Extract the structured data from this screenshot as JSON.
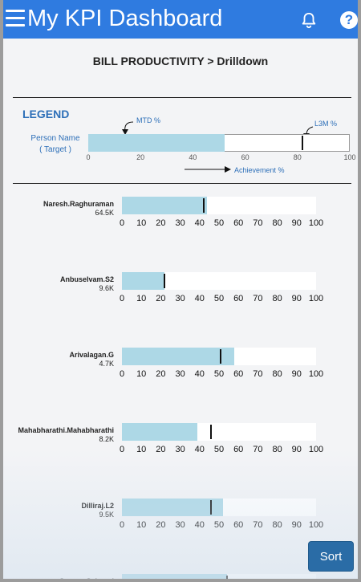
{
  "header": {
    "title": "My KPI Dashboard",
    "icons": {
      "menu": "hamburger-icon",
      "notifications": "bell-icon",
      "help": "help-icon"
    },
    "help_glyph": "?"
  },
  "page": {
    "title": "BILL PRODUCTIVITY > Drilldown"
  },
  "legend": {
    "title": "LEGEND",
    "person_name": "Person Name",
    "target": "( Target )",
    "mtd_label": "MTD %",
    "l3m_label": "L3M %",
    "achievement_label": "Achievement %",
    "mtd_value": 52,
    "l3m_value": 82,
    "ticks": [
      "0",
      "20",
      "40",
      "60",
      "80",
      "100"
    ]
  },
  "rows": [
    {
      "name": "Naresh.Raghuraman",
      "target": "64.5K",
      "mtd": 44,
      "l3m": 42
    },
    {
      "name": "Anbuselvam.S2",
      "target": "9.6K",
      "mtd": 22,
      "l3m": 22
    },
    {
      "name": "Arivalagan.G",
      "target": "4.7K",
      "mtd": 58,
      "l3m": 51
    },
    {
      "name": "Mahabharathi.Mahabharathi",
      "target": "8.2K",
      "mtd": 39,
      "l3m": 46
    },
    {
      "name": "Dilliraj.L2",
      "target": "9.5K",
      "mtd": 52,
      "l3m": 46
    },
    {
      "name": "George.Selvaraj",
      "target": "",
      "mtd": 54,
      "l3m": 54
    }
  ],
  "row_ticks": [
    "0",
    "10",
    "20",
    "30",
    "40",
    "50",
    "60",
    "70",
    "80",
    "90",
    "100"
  ],
  "sort_label": "Sort",
  "colors": {
    "header": "#2f7be0",
    "fill": "#add8e6",
    "legend_text": "#2d6fb8",
    "sort_button": "#2a6ca6"
  }
}
